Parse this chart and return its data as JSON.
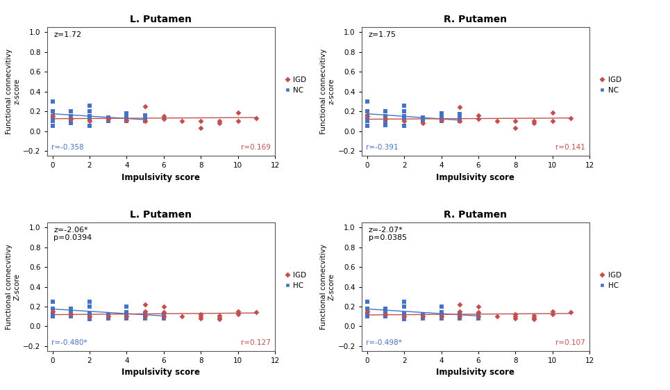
{
  "panels": [
    {
      "title": "L. Putamen",
      "z_text": "z=1.72",
      "r_nc_text": "r=-0.358",
      "r_igd_text": "r=0.169",
      "nc_label": "NC",
      "igd_label": "IGD",
      "ylabel1": "Functional connecvitivy",
      "ylabel2": "z-score",
      "nc_x": [
        0,
        0,
        0,
        0,
        0,
        0,
        1,
        1,
        1,
        1,
        2,
        2,
        2,
        2,
        2,
        3,
        3,
        4,
        4,
        4,
        4,
        5,
        5,
        5
      ],
      "nc_y": [
        0.3,
        0.2,
        0.15,
        0.12,
        0.1,
        0.05,
        0.2,
        0.15,
        0.1,
        0.08,
        0.26,
        0.2,
        0.15,
        0.12,
        0.05,
        0.14,
        0.1,
        0.18,
        0.15,
        0.12,
        0.1,
        0.16,
        0.13,
        0.1
      ],
      "igd_x": [
        0,
        1,
        2,
        3,
        4,
        5,
        5,
        6,
        6,
        7,
        8,
        8,
        9,
        9,
        10,
        10,
        11
      ],
      "igd_y": [
        0.15,
        0.12,
        0.1,
        0.12,
        0.11,
        0.25,
        0.1,
        0.15,
        0.12,
        0.1,
        0.03,
        0.1,
        0.1,
        0.08,
        0.19,
        0.1,
        0.13
      ],
      "nc_trend_x": [
        0,
        5
      ],
      "nc_trend_y": [
        0.175,
        0.115
      ],
      "igd_trend_x": [
        0,
        11
      ],
      "igd_trend_y": [
        0.125,
        0.137
      ],
      "xlim": [
        -0.3,
        12
      ],
      "ylim": [
        -0.25,
        1.05
      ],
      "yticks": [
        -0.2,
        0,
        0.2,
        0.4,
        0.6,
        0.8,
        1
      ],
      "xticks": [
        0,
        2,
        4,
        6,
        8,
        10,
        12
      ]
    },
    {
      "title": "R. Putamen",
      "z_text": "z=1.75",
      "r_nc_text": "r=-0.391",
      "r_igd_text": "r=0.141",
      "nc_label": "NC",
      "igd_label": "IGD",
      "ylabel1": "Functional connecvitivy",
      "ylabel2": "z-score",
      "nc_x": [
        0,
        0,
        0,
        0,
        0,
        0,
        1,
        1,
        1,
        1,
        2,
        2,
        2,
        2,
        2,
        3,
        3,
        4,
        4,
        4,
        4,
        5,
        5,
        5
      ],
      "nc_y": [
        0.3,
        0.2,
        0.15,
        0.12,
        0.1,
        0.05,
        0.2,
        0.15,
        0.1,
        0.06,
        0.26,
        0.2,
        0.15,
        0.12,
        0.05,
        0.14,
        0.1,
        0.18,
        0.15,
        0.12,
        0.1,
        0.17,
        0.13,
        0.1
      ],
      "igd_x": [
        0,
        1,
        2,
        3,
        4,
        5,
        5,
        6,
        6,
        7,
        8,
        8,
        9,
        9,
        10,
        10,
        11
      ],
      "igd_y": [
        0.15,
        0.12,
        0.1,
        0.08,
        0.11,
        0.24,
        0.1,
        0.16,
        0.12,
        0.1,
        0.03,
        0.1,
        0.1,
        0.08,
        0.19,
        0.1,
        0.13
      ],
      "nc_trend_x": [
        0,
        5
      ],
      "nc_trend_y": [
        0.175,
        0.11
      ],
      "igd_trend_x": [
        0,
        11
      ],
      "igd_trend_y": [
        0.12,
        0.132
      ],
      "xlim": [
        -0.3,
        12
      ],
      "ylim": [
        -0.25,
        1.05
      ],
      "yticks": [
        -0.2,
        0,
        0.2,
        0.4,
        0.6,
        0.8,
        1
      ],
      "xticks": [
        0,
        2,
        4,
        6,
        8,
        10,
        12
      ]
    },
    {
      "title": "L. Putamen",
      "z_text": "z=-2.06*\np=0.0394",
      "r_nc_text": "r=-0.480*",
      "r_igd_text": "r=0.127",
      "nc_label": "HC",
      "igd_label": "IGD",
      "ylabel1": "Functional connecvitivy",
      "ylabel2": "Z-score",
      "nc_x": [
        0,
        0,
        0,
        0,
        1,
        1,
        1,
        2,
        2,
        2,
        2,
        2,
        3,
        3,
        4,
        4,
        4,
        4,
        5,
        5,
        5,
        6,
        6
      ],
      "nc_y": [
        0.25,
        0.18,
        0.13,
        0.1,
        0.18,
        0.14,
        0.1,
        0.25,
        0.2,
        0.13,
        0.1,
        0.07,
        0.12,
        0.08,
        0.2,
        0.14,
        0.1,
        0.08,
        0.13,
        0.1,
        0.08,
        0.12,
        0.08
      ],
      "igd_x": [
        0,
        1,
        2,
        3,
        4,
        5,
        5,
        5,
        6,
        6,
        6,
        7,
        8,
        8,
        8,
        9,
        9,
        9,
        10,
        10,
        11
      ],
      "igd_y": [
        0.15,
        0.12,
        0.1,
        0.1,
        0.1,
        0.22,
        0.15,
        0.1,
        0.2,
        0.14,
        0.1,
        0.1,
        0.12,
        0.1,
        0.08,
        0.11,
        0.09,
        0.07,
        0.15,
        0.12,
        0.14
      ],
      "nc_trend_x": [
        0,
        6
      ],
      "nc_trend_y": [
        0.175,
        0.105
      ],
      "igd_trend_x": [
        0,
        11
      ],
      "igd_trend_y": [
        0.118,
        0.135
      ],
      "xlim": [
        -0.3,
        12
      ],
      "ylim": [
        -0.25,
        1.05
      ],
      "yticks": [
        -0.2,
        0,
        0.2,
        0.4,
        0.6,
        0.8,
        1
      ],
      "xticks": [
        0,
        2,
        4,
        6,
        8,
        10,
        12
      ]
    },
    {
      "title": "R. Putamen",
      "z_text": "z=-2.07*\np=0.0385",
      "r_nc_text": "r=-0.498*",
      "r_igd_text": "r=0.107",
      "nc_label": "HC",
      "igd_label": "IGD",
      "ylabel1": "Functional connecvitivy",
      "ylabel2": "Z-score",
      "nc_x": [
        0,
        0,
        0,
        0,
        1,
        1,
        1,
        2,
        2,
        2,
        2,
        2,
        3,
        3,
        4,
        4,
        4,
        4,
        5,
        5,
        5,
        6,
        6
      ],
      "nc_y": [
        0.25,
        0.18,
        0.13,
        0.1,
        0.18,
        0.14,
        0.1,
        0.25,
        0.2,
        0.13,
        0.1,
        0.07,
        0.12,
        0.08,
        0.2,
        0.14,
        0.1,
        0.08,
        0.13,
        0.1,
        0.08,
        0.12,
        0.08
      ],
      "igd_x": [
        0,
        1,
        2,
        3,
        4,
        5,
        5,
        5,
        6,
        6,
        6,
        7,
        8,
        8,
        8,
        9,
        9,
        9,
        10,
        10,
        11
      ],
      "igd_y": [
        0.15,
        0.12,
        0.1,
        0.1,
        0.1,
        0.22,
        0.15,
        0.1,
        0.2,
        0.14,
        0.1,
        0.1,
        0.12,
        0.1,
        0.08,
        0.11,
        0.09,
        0.07,
        0.15,
        0.12,
        0.14
      ],
      "nc_trend_x": [
        0,
        6
      ],
      "nc_trend_y": [
        0.175,
        0.105
      ],
      "igd_trend_x": [
        0,
        11
      ],
      "igd_trend_y": [
        0.115,
        0.13
      ],
      "xlim": [
        -0.3,
        12
      ],
      "ylim": [
        -0.25,
        1.05
      ],
      "yticks": [
        -0.2,
        0,
        0.2,
        0.4,
        0.6,
        0.8,
        1
      ],
      "xticks": [
        0,
        2,
        4,
        6,
        8,
        10,
        12
      ]
    }
  ],
  "igd_color": "#C0504D",
  "nc_color": "#4472C4",
  "xlabel": "Impulsivity score",
  "bg_color": "#FFFFFF",
  "fig_bg": "#FFFFFF"
}
